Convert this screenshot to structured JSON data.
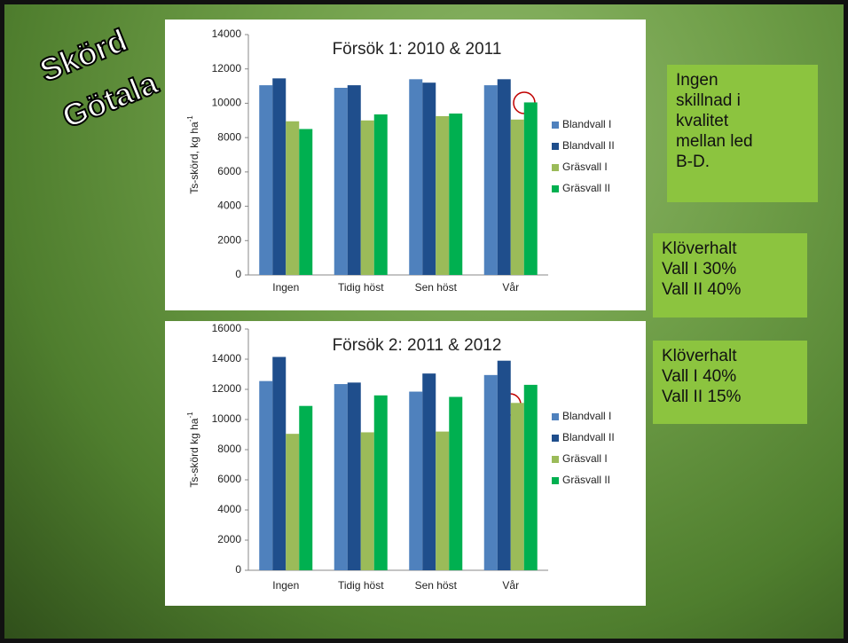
{
  "slide_title": [
    "Skörd",
    "Götala"
  ],
  "notes": [
    [
      "Ingen",
      "skillnad i",
      "kvalitet",
      "mellan led",
      "B-D."
    ],
    [
      "Klöverhalt",
      "Vall I 30%",
      "Vall II 40%"
    ],
    [
      "Klöverhalt",
      "Vall I 40%",
      "Vall II 15%"
    ]
  ],
  "chart_data": [
    {
      "type": "bar",
      "title": "Försök 1: 2010 & 2011",
      "ylabel": "Ts-skörd, kg ha",
      "ylabel_sup": "-1",
      "categories": [
        "Ingen",
        "Tidig höst",
        "Sen höst",
        "Vår"
      ],
      "series": [
        {
          "name": "Blandvall I",
          "color": "#4f81bd",
          "values": [
            11050,
            10900,
            11400,
            11050
          ]
        },
        {
          "name": "Blandvall II",
          "color": "#1f4e8c",
          "values": [
            11450,
            11050,
            11200,
            11400
          ]
        },
        {
          "name": "Gräsvall I",
          "color": "#9bbb59",
          "values": [
            8950,
            9000,
            9250,
            9050
          ]
        },
        {
          "name": "Gräsvall II",
          "color": "#00b050",
          "values": [
            8500,
            9350,
            9400,
            10050
          ]
        }
      ],
      "ylim": [
        0,
        14000
      ],
      "yticks": [
        0,
        2000,
        4000,
        6000,
        8000,
        10000,
        12000,
        14000
      ],
      "grid": false
    },
    {
      "type": "bar",
      "title": "Försök 2: 2011 & 2012",
      "ylabel": "Ts-skörd kg ha",
      "ylabel_sup": "-1",
      "categories": [
        "Ingen",
        "Tidig höst",
        "Sen höst",
        "Vår"
      ],
      "series": [
        {
          "name": "Blandvall I",
          "color": "#4f81bd",
          "values": [
            12550,
            12350,
            11850,
            12950
          ]
        },
        {
          "name": "Blandvall II",
          "color": "#1f4e8c",
          "values": [
            14150,
            12450,
            13050,
            13900
          ]
        },
        {
          "name": "Gräsvall I",
          "color": "#9bbb59",
          "values": [
            9050,
            9150,
            9200,
            11100
          ]
        },
        {
          "name": "Gräsvall II",
          "color": "#00b050",
          "values": [
            10900,
            11600,
            11500,
            12300
          ]
        }
      ],
      "ylim": [
        0,
        16000
      ],
      "yticks": [
        0,
        2000,
        4000,
        6000,
        8000,
        10000,
        12000,
        14000,
        16000
      ],
      "grid": false
    }
  ]
}
